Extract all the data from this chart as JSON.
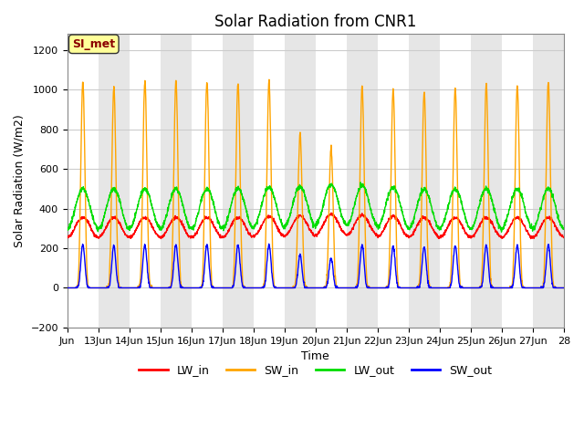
{
  "title": "Solar Radiation from CNR1",
  "xlabel": "Time",
  "ylabel": "Solar Radiation (W/m2)",
  "ylim": [
    -200,
    1280
  ],
  "yticks": [
    -200,
    0,
    200,
    400,
    600,
    800,
    1000,
    1200
  ],
  "start_day": 13,
  "end_day": 28,
  "num_days": 16,
  "points_per_day": 144,
  "sw_in_peak": 1040,
  "sw_out_peak": 230,
  "lw_in_base": 305,
  "lw_in_amp": 50,
  "lw_out_base": 400,
  "lw_out_amp": 100,
  "colors": {
    "LW_in": "#ff0000",
    "SW_in": "#ffa500",
    "LW_out": "#00dd00",
    "SW_out": "#0000ff"
  },
  "bg_color": "#ffffff",
  "grid_color": "#cccccc",
  "band_color": "#e6e6e6",
  "annotation_text": "SI_met",
  "annotation_bg": "#ffff99",
  "annotation_border": "#8b0000",
  "line_width": 1.0,
  "xtick_labels": [
    "Jun",
    "13Jun",
    "14Jun",
    "15Jun",
    "16Jun",
    "17Jun",
    "18Jun",
    "19Jun",
    "20Jun",
    "21Jun",
    "22Jun",
    "23Jun",
    "24Jun",
    "25Jun",
    "26Jun",
    "27Jun",
    "28"
  ],
  "day_variations_sw": [
    1.0,
    0.97,
    1.0,
    1.0,
    1.0,
    0.99,
    1.0,
    0.75,
    0.68,
    0.98,
    0.96,
    0.95,
    0.97,
    0.99,
    0.98,
    1.0
  ],
  "day_variations_lw": [
    1.0,
    1.0,
    1.0,
    1.0,
    1.0,
    1.0,
    1.02,
    1.03,
    1.05,
    1.04,
    1.02,
    1.0,
    1.0,
    1.0,
    1.0,
    1.0
  ]
}
